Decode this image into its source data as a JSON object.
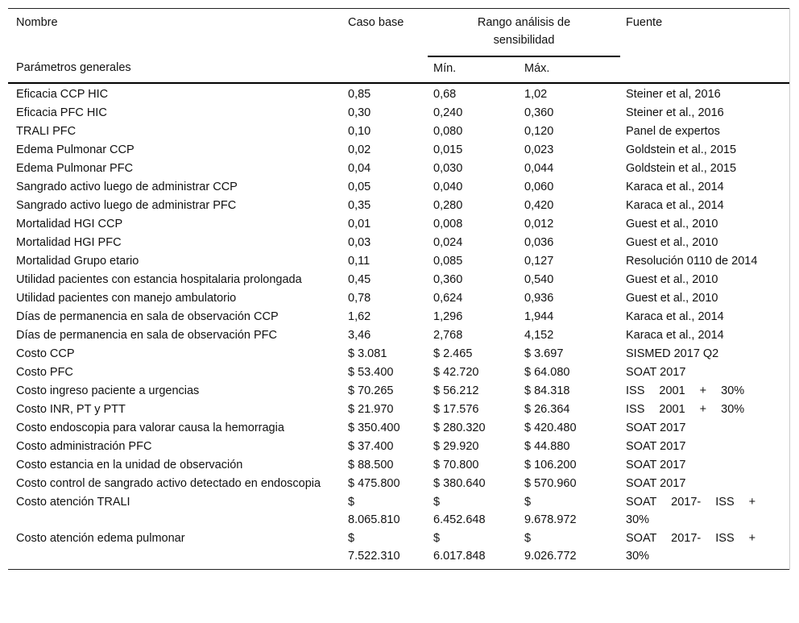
{
  "header": {
    "nombre": "Nombre",
    "caso_base": "Caso base",
    "rango": "Rango análisis de sensibilidad",
    "fuente": "Fuente",
    "section": "Parámetros generales",
    "min": "Mín.",
    "max": "Máx."
  },
  "rows": [
    {
      "nombre": "Eficacia CCP HIC",
      "base": "0,85",
      "min": "0,68",
      "max": "1,02",
      "fuente": "Steiner et al, 2016"
    },
    {
      "nombre": "Eficacia PFC HIC",
      "base": "0,30",
      "min": "0,240",
      "max": "0,360",
      "fuente": "Steiner et al., 2016"
    },
    {
      "nombre": "TRALI PFC",
      "base": "0,10",
      "min": "0,080",
      "max": "0,120",
      "fuente": "Panel de expertos"
    },
    {
      "nombre": "Edema Pulmonar CCP",
      "base": "0,02",
      "min": "0,015",
      "max": "0,023",
      "fuente": "Goldstein et al., 2015"
    },
    {
      "nombre": "Edema Pulmonar PFC",
      "base": "0,04",
      "min": "0,030",
      "max": "0,044",
      "fuente": "Goldstein et al., 2015"
    },
    {
      "nombre": "Sangrado activo luego de administrar CCP",
      "base": "0,05",
      "min": "0,040",
      "max": "0,060",
      "fuente": "Karaca et al., 2014"
    },
    {
      "nombre": "Sangrado activo luego de administrar PFC",
      "base": "0,35",
      "min": "0,280",
      "max": "0,420",
      "fuente": "Karaca et al., 2014"
    },
    {
      "nombre": "Mortalidad HGI CCP",
      "base": "0,01",
      "min": "0,008",
      "max": "0,012",
      "fuente": "Guest et al., 2010"
    },
    {
      "nombre": "Mortalidad HGI PFC",
      "base": "0,03",
      "min": "0,024",
      "max": "0,036",
      "fuente": "Guest et al., 2010"
    },
    {
      "nombre": "Mortalidad Grupo etario",
      "base": "0,11",
      "min": "0,085",
      "max": "0,127",
      "fuente": "Resolución 0110 de 2014"
    },
    {
      "nombre": "Utilidad pacientes con estancia hospitalaria prolongada",
      "base": "0,45",
      "min": "0,360",
      "max": "0,540",
      "fuente": "Guest et al., 2010"
    },
    {
      "nombre": "Utilidad pacientes con manejo ambulatorio",
      "base": "0,78",
      "min": "0,624",
      "max": "0,936",
      "fuente": "Guest et al., 2010"
    },
    {
      "nombre": "Días de permanencia en sala de observación CCP",
      "base": "1,62",
      "min": "1,296",
      "max": "1,944",
      "fuente": "Karaca et al., 2014"
    },
    {
      "nombre": "Días de permanencia en sala de observación PFC",
      "base": "3,46",
      "min": "2,768",
      "max": "4,152",
      "fuente": "Karaca et al., 2014"
    },
    {
      "nombre": "Costo CCP",
      "base": "$ 3.081",
      "min": "$ 2.465",
      "max": "$ 3.697",
      "fuente": "SISMED 2017 Q2"
    },
    {
      "nombre": "Costo PFC",
      "base": "$ 53.400",
      "min": "$ 42.720",
      "max": "$ 64.080",
      "fuente": "SOAT 2017"
    },
    {
      "nombre": "Costo ingreso paciente a urgencias",
      "base": "$ 70.265",
      "min": "$ 56.212",
      "max": "$ 84.318",
      "fuente": "ISS 2001 + 30%"
    },
    {
      "nombre": "Costo INR, PT y PTT",
      "base": "$ 21.970",
      "min": "$ 17.576",
      "max": "$ 26.364",
      "fuente": "ISS 2001 + 30%"
    },
    {
      "nombre": "Costo endoscopia para valorar causa la hemorragia",
      "base": "$ 350.400",
      "min": "$ 280.320",
      "max": "$ 420.480",
      "fuente": "SOAT 2017"
    },
    {
      "nombre": "Costo administración PFC",
      "base": "$ 37.400",
      "min": "$ 29.920",
      "max": "$ 44.880",
      "fuente": "SOAT 2017"
    },
    {
      "nombre": "Costo estancia en la unidad de observación",
      "base": "$ 88.500",
      "min": "$ 70.800",
      "max": "$ 106.200",
      "fuente": "SOAT 2017"
    },
    {
      "nombre": "Costo control de sangrado activo detectado en endoscopia",
      "base": "$ 475.800",
      "min": "$ 380.640",
      "max": "$ 570.960",
      "fuente": "SOAT 2017"
    },
    {
      "nombre": "Costo atención TRALI",
      "base": "$ 8.065.810",
      "min": "$ 6.452.648",
      "max": "$ 9.678.972",
      "fuente": "SOAT 2017- ISS + 30%"
    },
    {
      "nombre": "Costo atención edema pulmonar",
      "base": "$ 7.522.310",
      "min": "$ 6.017.848",
      "max": "$ 9.026.772",
      "fuente": "SOAT 2017- ISS + 30%"
    }
  ]
}
